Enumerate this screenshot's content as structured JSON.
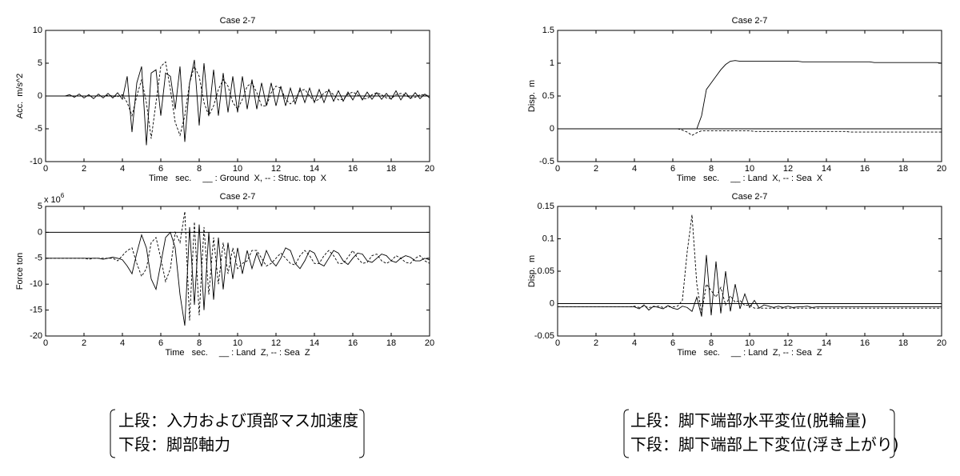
{
  "chart_data": [
    {
      "type": "line",
      "title": "Case 2-7",
      "xlabel": "Time   sec.",
      "legend": "__ : Ground  X, -- : Struc. top  X",
      "ylabel": "Acc.  m/s^2",
      "x": [
        0,
        0.25,
        0.5,
        0.75,
        1,
        1.25,
        1.5,
        1.75,
        2,
        2.25,
        2.5,
        2.75,
        3,
        3.25,
        3.5,
        3.75,
        4,
        4.25,
        4.5,
        4.75,
        5,
        5.25,
        5.5,
        5.75,
        6,
        6.25,
        6.5,
        6.75,
        7,
        7.25,
        7.5,
        7.75,
        8,
        8.25,
        8.5,
        8.75,
        9,
        9.25,
        9.5,
        9.75,
        10,
        10.25,
        10.5,
        10.75,
        11,
        11.25,
        11.5,
        11.75,
        12,
        12.25,
        12.5,
        12.75,
        13,
        13.25,
        13.5,
        13.75,
        14,
        14.25,
        14.5,
        14.75,
        15,
        15.25,
        15.5,
        15.75,
        16,
        16.25,
        16.5,
        16.75,
        17,
        17.25,
        17.5,
        17.75,
        18,
        18.25,
        18.5,
        18.75,
        19,
        19.25,
        19.5,
        19.75,
        20
      ],
      "xlim": [
        0,
        20
      ],
      "xticks": [
        0,
        2,
        4,
        6,
        8,
        10,
        12,
        14,
        16,
        18,
        20
      ],
      "ylim": [
        -10,
        10
      ],
      "yticks": [
        -10,
        -5,
        0,
        5,
        10
      ],
      "reference_lines": [
        0
      ],
      "series": [
        {
          "color": "#000",
          "dash": false,
          "values": [
            0,
            0,
            0,
            0,
            0,
            0.2,
            -0.2,
            0.3,
            -0.3,
            0.2,
            -0.4,
            0.3,
            -0.3,
            0.4,
            -0.3,
            0.5,
            -0.5,
            3,
            -5.5,
            2,
            4.5,
            -7.5,
            3.5,
            4,
            -3,
            3.5,
            3,
            -2,
            4.5,
            -7,
            2,
            5.5,
            -4.5,
            5,
            -3,
            4,
            -3,
            3.5,
            -2.5,
            3,
            -2.5,
            3,
            -2,
            2.5,
            -2,
            2,
            -1.5,
            2,
            -1.5,
            1.5,
            -1.5,
            1.2,
            -1.2,
            1.2,
            -1,
            1.2,
            -1,
            1,
            -1,
            1,
            -0.8,
            0.8,
            -0.8,
            0.6,
            -0.6,
            0.8,
            -0.6,
            0.6,
            -0.5,
            0.5,
            -0.5,
            0.4,
            -0.5,
            0.8,
            -0.6,
            0.5,
            -0.4,
            0.5,
            -0.4,
            0.3,
            -0.3
          ]
        },
        {
          "color": "#000",
          "dash": true,
          "values": [
            0,
            0,
            0,
            0,
            0,
            0,
            0,
            0,
            0,
            0,
            0,
            0,
            0,
            0.1,
            0,
            -0.1,
            0.2,
            -1,
            -3,
            0,
            2.5,
            -1,
            -6.5,
            -1,
            4.5,
            5.2,
            1,
            -4,
            -6,
            -3,
            2,
            4.5,
            3,
            -1,
            -3,
            -1.5,
            1,
            2.5,
            1.5,
            -1,
            -2,
            -0.5,
            1.5,
            2,
            0.5,
            -1.5,
            -1.5,
            0.5,
            1.5,
            1.2,
            -0.5,
            -1.2,
            -0.5,
            0.8,
            1,
            0,
            -0.8,
            -0.5,
            0.5,
            0.8,
            0.2,
            -0.6,
            -0.5,
            0.3,
            0.6,
            0.2,
            -0.4,
            -0.4,
            0.2,
            0.5,
            0.2,
            -0.3,
            -0.4,
            0.2,
            0.4,
            0.1,
            -0.3,
            -0.2,
            0.2,
            0.2,
            0
          ]
        }
      ]
    },
    {
      "type": "line",
      "title": "Case 2-7",
      "xlabel": "Time   sec.",
      "legend": "__ : Land  Z, -- : Sea  Z",
      "ylabel": "Force ton",
      "y_multiplier": "x 10",
      "y_multiplier_exponent": "6",
      "x": [
        0,
        0.25,
        0.5,
        0.75,
        1,
        1.25,
        1.5,
        1.75,
        2,
        2.25,
        2.5,
        2.75,
        3,
        3.25,
        3.5,
        3.75,
        4,
        4.25,
        4.5,
        4.75,
        5,
        5.25,
        5.5,
        5.75,
        6,
        6.25,
        6.5,
        6.75,
        7,
        7.25,
        7.5,
        7.75,
        8,
        8.25,
        8.5,
        8.75,
        9,
        9.25,
        9.5,
        9.75,
        10,
        10.25,
        10.5,
        10.75,
        11,
        11.25,
        11.5,
        11.75,
        12,
        12.25,
        12.5,
        12.75,
        13,
        13.25,
        13.5,
        13.75,
        14,
        14.25,
        14.5,
        14.75,
        15,
        15.25,
        15.5,
        15.75,
        16,
        16.25,
        16.5,
        16.75,
        17,
        17.25,
        17.5,
        17.75,
        18,
        18.25,
        18.5,
        18.75,
        19,
        19.25,
        19.5,
        19.75,
        20
      ],
      "xlim": [
        0,
        20
      ],
      "xticks": [
        0,
        2,
        4,
        6,
        8,
        10,
        12,
        14,
        16,
        18,
        20
      ],
      "ylim": [
        -20,
        5
      ],
      "yticks": [
        -20,
        -15,
        -10,
        -5,
        0,
        5
      ],
      "reference_lines": [
        0
      ],
      "series": [
        {
          "color": "#000",
          "dash": false,
          "values": [
            -5,
            -5,
            -5,
            -5,
            -5,
            -5,
            -5,
            -5,
            -5,
            -5,
            -5,
            -5,
            -5.2,
            -5,
            -4.8,
            -5,
            -5.3,
            -6.5,
            -8,
            -4,
            -0.5,
            -3,
            -9,
            -11,
            -6,
            -1,
            0,
            -3,
            -12,
            -18,
            1,
            -14,
            1.5,
            -15,
            0,
            -13,
            -1,
            -11,
            -2,
            -9,
            -3,
            -8,
            -3.5,
            -7,
            -4,
            -6.5,
            -3.5,
            -5.5,
            -6.5,
            -5,
            -3,
            -3.5,
            -6,
            -7,
            -5.5,
            -3.5,
            -4,
            -6,
            -6.5,
            -5,
            -3.5,
            -4,
            -5.5,
            -6.2,
            -5,
            -4,
            -4.2,
            -5.5,
            -5.8,
            -5,
            -4.2,
            -4.5,
            -5.5,
            -5.8,
            -5,
            -4.5,
            -4.8,
            -5.5,
            -5.5,
            -5,
            -5.3
          ]
        },
        {
          "color": "#000",
          "dash": true,
          "values": [
            -5,
            -5,
            -5,
            -5,
            -5,
            -5,
            -5,
            -5,
            -5,
            -5.2,
            -5,
            -5,
            -5,
            -5,
            -5,
            -5.5,
            -4.5,
            -3.5,
            -3,
            -6,
            -8.5,
            -7,
            -2,
            -1,
            -5,
            -9.5,
            -7,
            0,
            -2,
            4,
            -17,
            2,
            -16,
            1,
            -12,
            -1,
            -10,
            -2,
            -8,
            -3,
            -7,
            -6,
            -5.5,
            -3.5,
            -3.5,
            -5,
            -6.5,
            -6,
            -5,
            -4,
            -5,
            -6,
            -6.3,
            -4.5,
            -3.5,
            -4.5,
            -6,
            -6,
            -4.5,
            -3.5,
            -4.5,
            -6,
            -6,
            -4.8,
            -3.5,
            -5,
            -6,
            -5.8,
            -4.5,
            -4.2,
            -5.5,
            -6,
            -5.5,
            -4.5,
            -5,
            -5.8,
            -6,
            -5,
            -4.5,
            -5.5,
            -6
          ]
        }
      ]
    },
    {
      "type": "line",
      "title": "Case 2-7",
      "xlabel": "Time   sec.",
      "legend": "__ : Land  X, -- : Sea  X",
      "ylabel": "Disp.  m",
      "x": [
        0,
        0.25,
        0.5,
        0.75,
        1,
        1.25,
        1.5,
        1.75,
        2,
        2.25,
        2.5,
        2.75,
        3,
        3.25,
        3.5,
        3.75,
        4,
        4.25,
        4.5,
        4.75,
        5,
        5.25,
        5.5,
        5.75,
        6,
        6.25,
        6.5,
        6.75,
        7,
        7.25,
        7.5,
        7.75,
        8,
        8.25,
        8.5,
        8.75,
        9,
        9.25,
        9.5,
        9.75,
        10,
        10.25,
        10.5,
        10.75,
        11,
        11.25,
        11.5,
        11.75,
        12,
        12.25,
        12.5,
        12.75,
        13,
        13.25,
        13.5,
        13.75,
        14,
        14.25,
        14.5,
        14.75,
        15,
        15.25,
        15.5,
        15.75,
        16,
        16.25,
        16.5,
        16.75,
        17,
        17.25,
        17.5,
        17.75,
        18,
        18.25,
        18.5,
        18.75,
        19,
        19.25,
        19.5,
        19.75,
        20
      ],
      "xlim": [
        0,
        20
      ],
      "xticks": [
        0,
        2,
        4,
        6,
        8,
        10,
        12,
        14,
        16,
        18,
        20
      ],
      "ylim": [
        -0.5,
        1.5
      ],
      "yticks": [
        -0.5,
        0,
        0.5,
        1,
        1.5
      ],
      "reference_lines": [
        0
      ],
      "series": [
        {
          "color": "#000",
          "dash": false,
          "values": [
            0,
            0,
            0,
            0,
            0,
            0,
            0,
            0,
            0,
            0,
            0,
            0,
            0,
            0,
            0,
            0,
            0,
            0,
            0,
            0,
            0,
            0,
            0,
            0,
            0,
            0,
            0,
            0,
            0,
            0,
            0.2,
            0.6,
            0.7,
            0.8,
            0.9,
            0.98,
            1.03,
            1.04,
            1.03,
            1.03,
            1.03,
            1.03,
            1.03,
            1.03,
            1.03,
            1.03,
            1.03,
            1.03,
            1.03,
            1.03,
            1.03,
            1.02,
            1.02,
            1.02,
            1.02,
            1.02,
            1.02,
            1.02,
            1.02,
            1.02,
            1.02,
            1.02,
            1.02,
            1.02,
            1.02,
            1.02,
            1.01,
            1.01,
            1.01,
            1.01,
            1.01,
            1.01,
            1.01,
            1.01,
            1.01,
            1.01,
            1.01,
            1.01,
            1.01,
            1.01,
            1.0
          ]
        },
        {
          "color": "#000",
          "dash": true,
          "values": [
            0,
            0,
            0,
            0,
            0,
            0,
            0,
            0,
            0,
            0,
            0,
            0,
            0,
            0,
            0,
            0,
            0,
            0,
            0,
            0,
            0,
            0,
            0,
            0,
            0,
            0,
            -0.02,
            -0.05,
            -0.1,
            -0.06,
            -0.03,
            -0.03,
            -0.03,
            -0.03,
            -0.03,
            -0.03,
            -0.03,
            -0.03,
            -0.03,
            -0.03,
            -0.03,
            -0.04,
            -0.04,
            -0.04,
            -0.04,
            -0.04,
            -0.04,
            -0.04,
            -0.04,
            -0.04,
            -0.04,
            -0.04,
            -0.04,
            -0.04,
            -0.04,
            -0.04,
            -0.04,
            -0.04,
            -0.04,
            -0.04,
            -0.04,
            -0.05,
            -0.05,
            -0.05,
            -0.05,
            -0.05,
            -0.05,
            -0.05,
            -0.05,
            -0.05,
            -0.05,
            -0.05,
            -0.05,
            -0.05,
            -0.05,
            -0.05,
            -0.05,
            -0.05,
            -0.05,
            -0.05,
            -0.05
          ]
        }
      ]
    },
    {
      "type": "line",
      "title": "Case 2-7",
      "xlabel": "Time   sec.",
      "legend": "__ : Land  Z, -- : Sea  Z",
      "ylabel": "Disp.  m",
      "x": [
        0,
        0.25,
        0.5,
        0.75,
        1,
        1.25,
        1.5,
        1.75,
        2,
        2.25,
        2.5,
        2.75,
        3,
        3.25,
        3.5,
        3.75,
        4,
        4.25,
        4.5,
        4.75,
        5,
        5.25,
        5.5,
        5.75,
        6,
        6.25,
        6.5,
        6.75,
        7,
        7.25,
        7.5,
        7.75,
        8,
        8.25,
        8.5,
        8.75,
        9,
        9.25,
        9.5,
        9.75,
        10,
        10.25,
        10.5,
        10.75,
        11,
        11.25,
        11.5,
        11.75,
        12,
        12.25,
        12.5,
        12.75,
        13,
        13.25,
        13.5,
        13.75,
        14,
        14.25,
        14.5,
        14.75,
        15,
        15.25,
        15.5,
        15.75,
        16,
        16.25,
        16.5,
        16.75,
        17,
        17.25,
        17.5,
        17.75,
        18,
        18.25,
        18.5,
        18.75,
        19,
        19.25,
        19.5,
        19.75,
        20
      ],
      "xlim": [
        0,
        20
      ],
      "xticks": [
        0,
        2,
        4,
        6,
        8,
        10,
        12,
        14,
        16,
        18,
        20
      ],
      "ylim": [
        -0.05,
        0.15
      ],
      "yticks": [
        -0.05,
        0,
        0.05,
        0.1,
        0.15
      ],
      "reference_lines": [
        0
      ],
      "series": [
        {
          "color": "#000",
          "dash": false,
          "values": [
            -0.005,
            -0.005,
            -0.005,
            -0.005,
            -0.005,
            -0.005,
            -0.005,
            -0.005,
            -0.005,
            -0.005,
            -0.005,
            -0.005,
            -0.005,
            -0.005,
            -0.005,
            -0.005,
            -0.005,
            -0.008,
            -0.002,
            -0.01,
            -0.004,
            -0.006,
            -0.008,
            -0.003,
            -0.007,
            -0.009,
            -0.004,
            -0.006,
            -0.012,
            0.01,
            -0.02,
            0.075,
            -0.018,
            0.065,
            -0.015,
            0.05,
            -0.012,
            0.03,
            -0.008,
            0.015,
            -0.006,
            0.005,
            -0.007,
            -0.002,
            -0.004,
            -0.006,
            -0.004,
            -0.006,
            -0.004,
            -0.006,
            -0.005,
            -0.005,
            -0.004,
            -0.006,
            -0.005,
            -0.005,
            -0.005,
            -0.005,
            -0.005,
            -0.005,
            -0.005,
            -0.005,
            -0.005,
            -0.005,
            -0.005,
            -0.005,
            -0.005,
            -0.005,
            -0.005,
            -0.005,
            -0.005,
            -0.005,
            -0.005,
            -0.005,
            -0.005,
            -0.005,
            -0.005,
            -0.005,
            -0.005,
            -0.005,
            -0.005
          ]
        },
        {
          "color": "#000",
          "dash": true,
          "values": [
            -0.005,
            -0.005,
            -0.005,
            -0.005,
            -0.005,
            -0.005,
            -0.005,
            -0.005,
            -0.005,
            -0.005,
            -0.005,
            -0.005,
            -0.005,
            -0.005,
            -0.005,
            -0.005,
            -0.004,
            -0.006,
            -0.004,
            -0.006,
            -0.005,
            -0.004,
            -0.006,
            -0.005,
            -0.005,
            -0.004,
            0.005,
            0.08,
            0.137,
            0.03,
            -0.015,
            0.03,
            0.02,
            0.01,
            0.025,
            -0.002,
            0.012,
            0.002,
            0.005,
            -0.003,
            -0.002,
            -0.007,
            -0.007,
            -0.007,
            -0.007,
            -0.007,
            -0.007,
            -0.007,
            -0.007,
            -0.007,
            -0.007,
            -0.007,
            -0.007,
            -0.007,
            -0.007,
            -0.007,
            -0.007,
            -0.007,
            -0.007,
            -0.007,
            -0.007,
            -0.007,
            -0.007,
            -0.007,
            -0.007,
            -0.007,
            -0.007,
            -0.007,
            -0.007,
            -0.007,
            -0.007,
            -0.007,
            -0.007,
            -0.007,
            -0.007,
            -0.007,
            -0.007,
            -0.007,
            -0.007,
            -0.007,
            -0.007
          ]
        }
      ]
    }
  ],
  "captions": [
    {
      "lines": [
        "上段：入力および頂部マス加速度",
        "下段：脚部軸力"
      ]
    },
    {
      "lines": [
        "上段：脚下端部水平変位(脱輪量)",
        "下段：脚下端部上下変位(浮き上がり)"
      ]
    }
  ]
}
